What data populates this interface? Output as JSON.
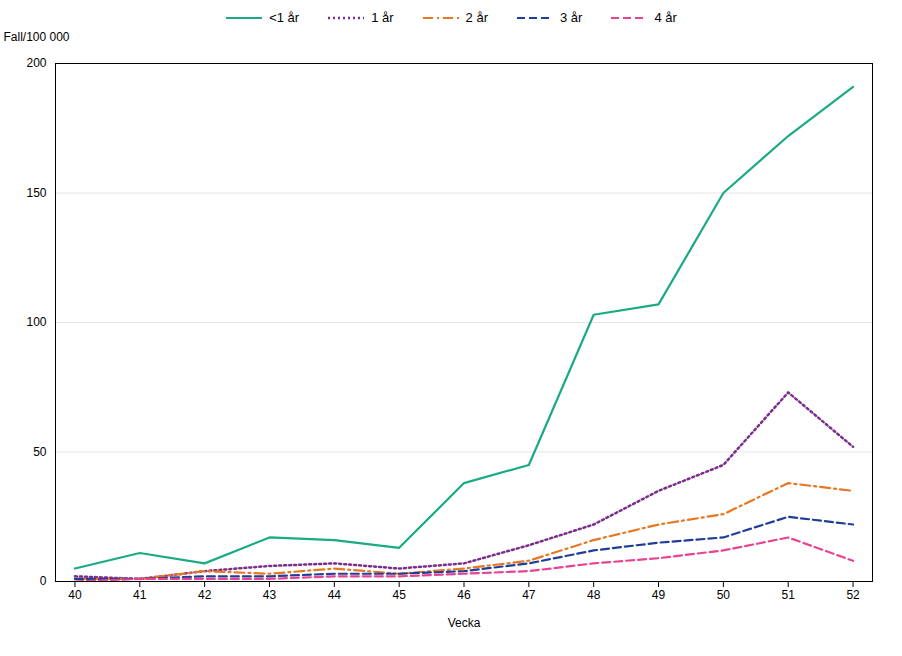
{
  "chart_data": {
    "type": "line",
    "x": [
      40,
      41,
      42,
      43,
      44,
      45,
      46,
      47,
      48,
      49,
      50,
      51,
      52
    ],
    "series": [
      {
        "name": "<1 år",
        "color": "#1aaa85",
        "line_style": "solid",
        "values": [
          5,
          11,
          7,
          17,
          16,
          13,
          38,
          45,
          103,
          107,
          150,
          172,
          191
        ]
      },
      {
        "name": "1 år",
        "color": "#7b2d8b",
        "line_style": "dotted",
        "values": [
          2,
          1,
          4,
          6,
          7,
          5,
          7,
          14,
          22,
          35,
          45,
          73,
          52
        ]
      },
      {
        "name": "2 år",
        "color": "#e87722",
        "line_style": "dashdot",
        "values": [
          1,
          1,
          4,
          3,
          5,
          3,
          5,
          8,
          16,
          22,
          26,
          38,
          35
        ]
      },
      {
        "name": "3 år",
        "color": "#1f3d99",
        "line_style": "dashed",
        "values": [
          1,
          1,
          2,
          2,
          3,
          3,
          4,
          7,
          12,
          15,
          17,
          25,
          22
        ]
      },
      {
        "name": "4 år",
        "color": "#e84393",
        "line_style": "dashed",
        "values": [
          0,
          1,
          1,
          1,
          2,
          2,
          3,
          4,
          7,
          9,
          12,
          17,
          8
        ]
      }
    ],
    "xlabel": "Vecka",
    "ylabel": "Fall/100 000",
    "xlim": [
      39.7,
      52.3
    ],
    "xticks": [
      40,
      41,
      42,
      43,
      44,
      45,
      46,
      47,
      48,
      49,
      50,
      51,
      52
    ],
    "ylim": [
      0,
      200
    ],
    "yticks": [
      0,
      50,
      100,
      150,
      200
    ],
    "grid": "y",
    "legend": "top"
  }
}
